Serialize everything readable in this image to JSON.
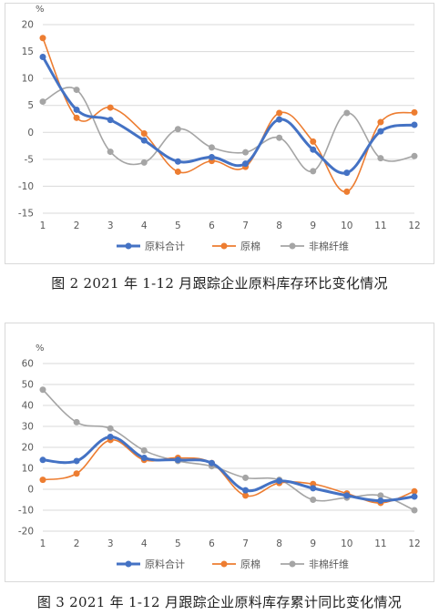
{
  "figures": [
    {
      "caption": "图 2   2021 年 1-12 月跟踪企业原料库存环比变化情况",
      "unit": "%"
    },
    {
      "caption": "图 3   2021 年 1-12 月跟踪企业原料库存累计同比变化情况",
      "unit": "%"
    }
  ],
  "colors": {
    "原料合计": "#4472c4",
    "原棉": "#ed7d31",
    "非棉纤维": "#a5a5a5"
  },
  "chart_data": [
    {
      "type": "line",
      "smooth": true,
      "title": "",
      "ylabel": "%",
      "xlabel": "",
      "x": [
        "1",
        "2",
        "3",
        "4",
        "5",
        "6",
        "7",
        "8",
        "9",
        "10",
        "11",
        "12"
      ],
      "ylim": [
        -15,
        20
      ],
      "yticks": [
        20,
        15,
        10,
        5,
        0,
        -5,
        -10,
        -15
      ],
      "grid": true,
      "legend": "bottom",
      "series": [
        {
          "name": "原料合计",
          "values": [
            14,
            4.2,
            2.3,
            -1.5,
            -5.4,
            -4.6,
            -5.8,
            2.4,
            -3.2,
            -7.5,
            0.2,
            1.4
          ]
        },
        {
          "name": "原棉",
          "values": [
            17.5,
            2.7,
            4.6,
            -0.2,
            -7.3,
            -5.3,
            -6.4,
            3.6,
            -1.7,
            -11,
            1.9,
            3.7
          ]
        },
        {
          "name": "非棉纤维",
          "values": [
            5.7,
            7.9,
            -3.6,
            -5.6,
            0.6,
            -2.8,
            -3.7,
            -1,
            -7.2,
            3.6,
            -4.8,
            -4.4
          ]
        }
      ]
    },
    {
      "type": "line",
      "smooth": true,
      "title": "",
      "ylabel": "%",
      "xlabel": "",
      "x": [
        "1",
        "2",
        "3",
        "4",
        "5",
        "6",
        "7",
        "8",
        "9",
        "10",
        "11",
        "12"
      ],
      "ylim": [
        -20,
        60
      ],
      "yticks": [
        60,
        50,
        40,
        30,
        20,
        10,
        0,
        -10,
        -20
      ],
      "grid": true,
      "legend": "bottom",
      "series": [
        {
          "name": "原料合计",
          "values": [
            14,
            13.5,
            25,
            15,
            14,
            12.5,
            -0.5,
            4,
            0.5,
            -3,
            -5.5,
            -3.5
          ]
        },
        {
          "name": "原棉",
          "values": [
            4.5,
            7.5,
            23.5,
            14,
            15,
            12.5,
            -3,
            3,
            2.5,
            -2,
            -6.5,
            -1
          ]
        },
        {
          "name": "非棉纤维",
          "values": [
            47.5,
            32,
            29,
            18.5,
            13.5,
            11,
            5.5,
            4.5,
            -5,
            -4,
            -3,
            -10
          ]
        }
      ]
    }
  ]
}
